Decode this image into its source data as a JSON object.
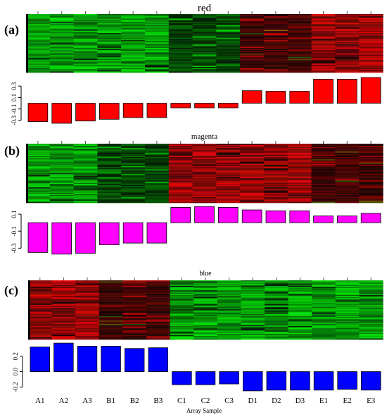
{
  "figure": {
    "xlabel": "Array Sample",
    "samples": [
      "A1",
      "A2",
      "A3",
      "B1",
      "B2",
      "B3",
      "C1",
      "C2",
      "C3",
      "D1",
      "D2",
      "D3",
      "E1",
      "E2",
      "E3"
    ]
  },
  "chart_data": [
    {
      "type": "bar",
      "panel_label": "(a)",
      "title": "red",
      "color": "#ff0000",
      "categories": [
        "A1",
        "A2",
        "A3",
        "B1",
        "B2",
        "B3",
        "C1",
        "C2",
        "C3",
        "D1",
        "D2",
        "D3",
        "E1",
        "E2",
        "E3"
      ],
      "values": [
        -0.32,
        -0.35,
        -0.31,
        -0.28,
        -0.25,
        -0.25,
        -0.08,
        -0.08,
        -0.08,
        0.22,
        0.21,
        0.21,
        0.42,
        0.42,
        0.45
      ],
      "ylim": [
        -0.35,
        0.45
      ],
      "yticks": [
        -0.3,
        -0.1,
        0.1,
        0.3
      ],
      "ytick_labels": [
        "-0.3",
        "-0.1",
        "0.1",
        "0.3"
      ],
      "heatmap_pattern": [
        "green",
        "green",
        "green",
        "green",
        "green",
        "green",
        "darkgreen",
        "darkgreen",
        "darkgreen",
        "darkred",
        "darkred",
        "darkred",
        "red",
        "red",
        "red"
      ]
    },
    {
      "type": "bar",
      "panel_label": "(b)",
      "title": "magenta",
      "color": "#ff00ff",
      "categories": [
        "A1",
        "A2",
        "A3",
        "B1",
        "B2",
        "B3",
        "C1",
        "C2",
        "C3",
        "D1",
        "D2",
        "D3",
        "E1",
        "E2",
        "E3"
      ],
      "values": [
        -0.35,
        -0.37,
        -0.36,
        -0.26,
        -0.24,
        -0.24,
        0.18,
        0.19,
        0.18,
        0.15,
        0.14,
        0.14,
        0.08,
        0.08,
        0.11
      ],
      "ylim": [
        -0.38,
        0.2
      ],
      "yticks": [
        -0.3,
        -0.1,
        0.1
      ],
      "ytick_labels": [
        "-0.3",
        "-0.1",
        "0.1"
      ],
      "heatmap_pattern": [
        "green",
        "green",
        "green",
        "darkgreen",
        "darkgreen",
        "darkgreen",
        "red",
        "red",
        "red",
        "red",
        "red",
        "red",
        "darkred",
        "darkred",
        "darkred"
      ]
    },
    {
      "type": "bar",
      "panel_label": "(c)",
      "title": "blue",
      "color": "#0000ff",
      "categories": [
        "A1",
        "A2",
        "A3",
        "B1",
        "B2",
        "B3",
        "C1",
        "C2",
        "C3",
        "D1",
        "D2",
        "D3",
        "E1",
        "E2",
        "E3"
      ],
      "values": [
        0.32,
        0.37,
        0.33,
        0.33,
        0.3,
        0.31,
        -0.17,
        -0.17,
        -0.16,
        -0.25,
        -0.24,
        -0.24,
        -0.24,
        -0.23,
        -0.24
      ],
      "ylim": [
        -0.26,
        0.38
      ],
      "yticks": [
        -0.2,
        0.0,
        0.2
      ],
      "ytick_labels": [
        "-0.2",
        "0.0",
        "0.2"
      ],
      "heatmap_pattern": [
        "red",
        "red",
        "red",
        "darkred",
        "darkred",
        "darkred",
        "green",
        "green",
        "green",
        "green",
        "green",
        "green",
        "green",
        "green",
        "green"
      ]
    }
  ]
}
